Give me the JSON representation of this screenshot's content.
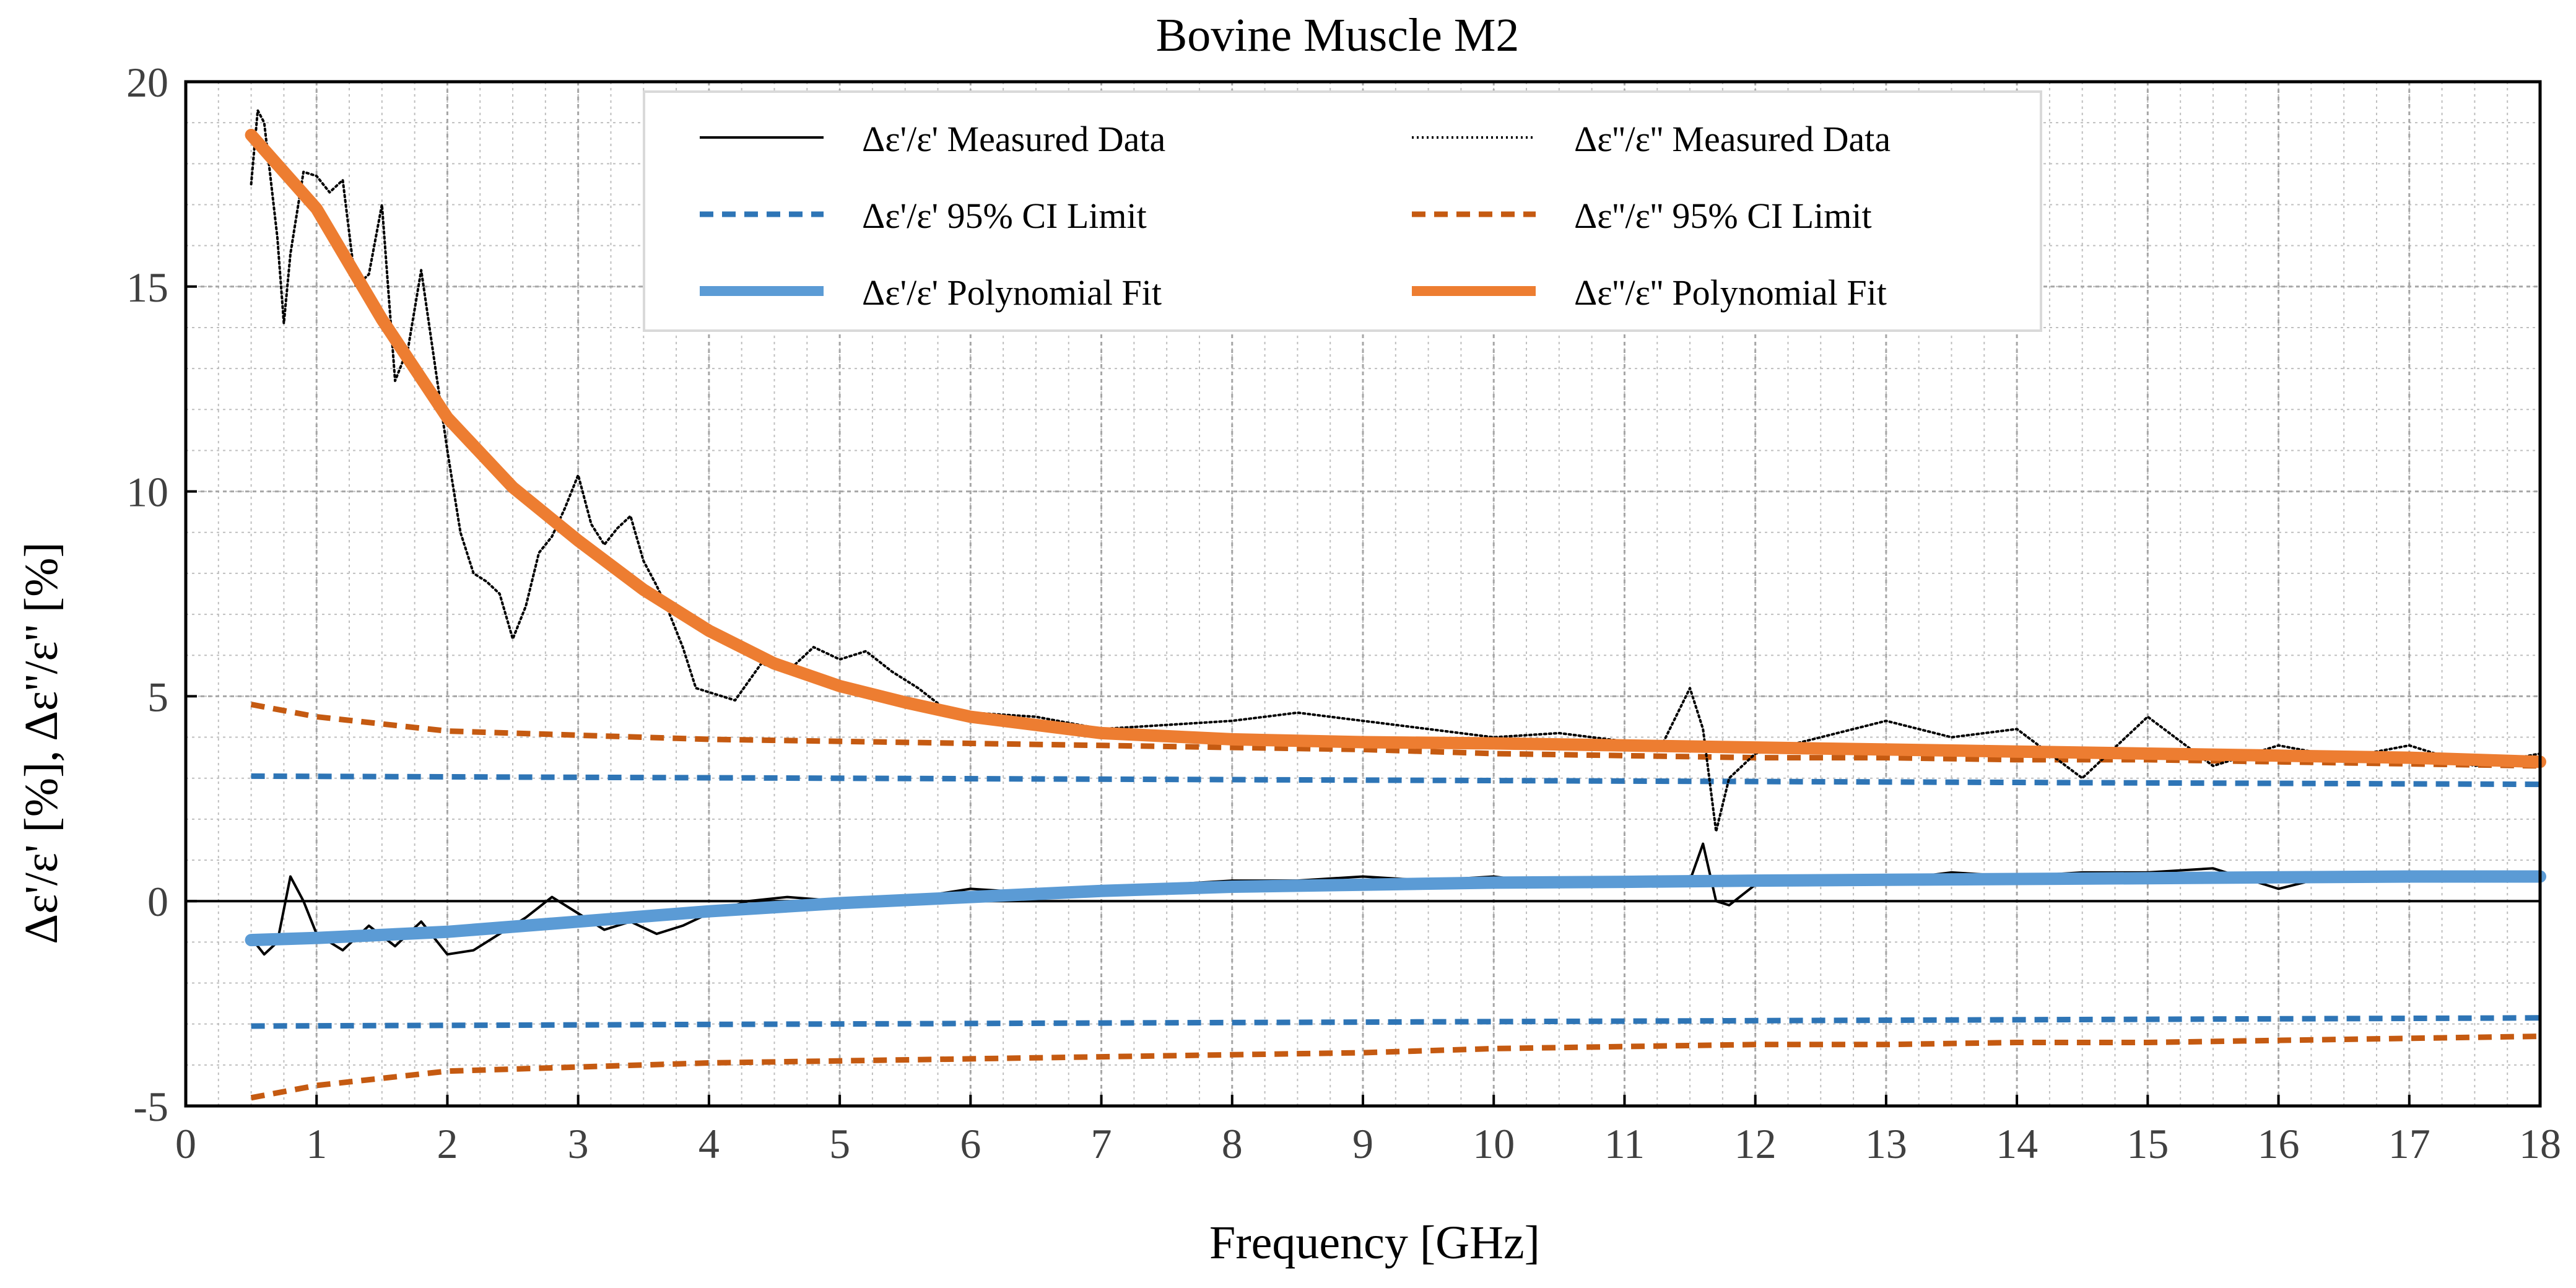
{
  "chart_data": {
    "type": "line",
    "title": "Bovine Muscle M2",
    "xlabel": "Frequency [GHz]",
    "ylabel": "Δε'/ε' [%],  Δε''/ε'' [%]",
    "xlim": [
      0,
      18
    ],
    "ylim": [
      -5,
      20
    ],
    "x_ticks": [
      0,
      1,
      2,
      3,
      4,
      5,
      6,
      7,
      8,
      9,
      10,
      11,
      12,
      13,
      14,
      15,
      16,
      17,
      18
    ],
    "y_ticks": [
      -5,
      0,
      5,
      10,
      15,
      20
    ],
    "x_tick_labels": [
      "0",
      "1",
      "2",
      "3",
      "4",
      "5",
      "6",
      "7",
      "8",
      "9",
      "10",
      "11",
      "12",
      "13",
      "14",
      "15",
      "16",
      "17",
      "18"
    ],
    "y_tick_labels": [
      "-5",
      "0",
      "5",
      "10",
      "15",
      "20"
    ],
    "grid": true,
    "grid_minor": true,
    "legend_position": "top-center",
    "zero_line": true,
    "series": [
      {
        "name": "Δε'/ε' Measured Data",
        "style": "solid-thin",
        "color": "#000000",
        "x": [
          0.5,
          0.6,
          0.7,
          0.8,
          0.9,
          1.0,
          1.2,
          1.4,
          1.6,
          1.8,
          2.0,
          2.2,
          2.4,
          2.6,
          2.8,
          3.0,
          3.2,
          3.4,
          3.6,
          3.8,
          4.0,
          4.3,
          4.6,
          5.0,
          5.5,
          6.0,
          6.5,
          7.0,
          7.5,
          8.0,
          8.5,
          9.0,
          9.5,
          10.0,
          10.5,
          11.0,
          11.5,
          11.6,
          11.7,
          11.8,
          12.0,
          12.5,
          13.0,
          13.5,
          14.0,
          14.5,
          15.0,
          15.5,
          16.0,
          16.5,
          17.0,
          17.5,
          18.0
        ],
        "y": [
          -0.9,
          -1.3,
          -1.0,
          0.6,
          0.0,
          -0.8,
          -1.2,
          -0.6,
          -1.1,
          -0.5,
          -1.3,
          -1.2,
          -0.8,
          -0.4,
          0.1,
          -0.3,
          -0.7,
          -0.5,
          -0.8,
          -0.6,
          -0.3,
          0.0,
          0.1,
          0.0,
          0.05,
          0.3,
          0.2,
          0.3,
          0.4,
          0.5,
          0.5,
          0.6,
          0.5,
          0.6,
          0.4,
          0.5,
          0.5,
          1.4,
          0.0,
          -0.1,
          0.4,
          0.6,
          0.5,
          0.7,
          0.6,
          0.7,
          0.7,
          0.8,
          0.3,
          0.7,
          0.6,
          0.7,
          0.7
        ]
      },
      {
        "name": "Δε''/ε'' Measured Data",
        "style": "dotted",
        "color": "#000000",
        "x": [
          0.5,
          0.55,
          0.6,
          0.7,
          0.75,
          0.8,
          0.9,
          1.0,
          1.1,
          1.2,
          1.3,
          1.4,
          1.5,
          1.6,
          1.7,
          1.8,
          1.9,
          2.0,
          2.1,
          2.2,
          2.3,
          2.4,
          2.5,
          2.6,
          2.7,
          2.8,
          2.9,
          3.0,
          3.1,
          3.2,
          3.3,
          3.4,
          3.5,
          3.6,
          3.7,
          3.8,
          3.9,
          4.0,
          4.2,
          4.4,
          4.6,
          4.8,
          5.0,
          5.2,
          5.4,
          5.6,
          5.8,
          6.0,
          6.5,
          7.0,
          7.5,
          8.0,
          8.5,
          9.0,
          9.5,
          10.0,
          10.5,
          11.0,
          11.3,
          11.5,
          11.6,
          11.7,
          11.8,
          12.0,
          12.5,
          13.0,
          13.5,
          14.0,
          14.5,
          15.0,
          15.5,
          16.0,
          16.5,
          17.0,
          17.5,
          18.0
        ],
        "y": [
          17.5,
          19.3,
          19.0,
          16.2,
          14.1,
          15.8,
          17.8,
          17.7,
          17.3,
          17.6,
          15.0,
          15.3,
          17.0,
          12.7,
          13.5,
          15.4,
          13.2,
          11.0,
          9.0,
          8.0,
          7.8,
          7.5,
          6.4,
          7.2,
          8.5,
          8.9,
          9.6,
          10.4,
          9.2,
          8.7,
          9.1,
          9.4,
          8.3,
          7.7,
          7.0,
          6.2,
          5.2,
          5.1,
          4.9,
          5.8,
          5.6,
          6.2,
          5.9,
          6.1,
          5.6,
          5.2,
          4.7,
          4.6,
          4.5,
          4.2,
          4.3,
          4.4,
          4.6,
          4.4,
          4.2,
          4.0,
          4.1,
          3.9,
          3.9,
          5.2,
          4.2,
          1.7,
          3.0,
          3.6,
          4.0,
          4.4,
          4.0,
          4.2,
          3.0,
          4.5,
          3.3,
          3.8,
          3.5,
          3.8,
          3.3,
          3.6
        ]
      },
      {
        "name": "Δε'/ε' 95% CI Limit",
        "style": "dashed",
        "color": "#2e75b6",
        "x": [
          0.5,
          18
        ],
        "y_upper": [
          3.05,
          2.85
        ],
        "y_lower": [
          -3.05,
          -2.85
        ]
      },
      {
        "name": "Δε''/ε'' 95% CI Limit",
        "style": "dashed",
        "color": "#c55a11",
        "x": [
          0.5,
          1,
          2,
          3,
          4,
          5,
          6,
          7,
          8,
          9,
          10,
          11,
          12,
          13,
          14,
          15,
          16,
          17,
          18
        ],
        "y_upper": [
          4.8,
          4.5,
          4.15,
          4.05,
          3.95,
          3.9,
          3.85,
          3.8,
          3.75,
          3.7,
          3.6,
          3.55,
          3.5,
          3.5,
          3.45,
          3.45,
          3.4,
          3.35,
          3.3
        ],
        "y_lower": [
          -4.8,
          -4.5,
          -4.15,
          -4.05,
          -3.95,
          -3.9,
          -3.85,
          -3.8,
          -3.75,
          -3.7,
          -3.6,
          -3.55,
          -3.5,
          -3.5,
          -3.45,
          -3.45,
          -3.4,
          -3.35,
          -3.3
        ]
      },
      {
        "name": "Δε'/ε' Polynomial Fit",
        "style": "solid-thick",
        "color": "#5b9bd5",
        "x": [
          0.5,
          1,
          2,
          3,
          4,
          5,
          6,
          7,
          8,
          9,
          10,
          11,
          12,
          13,
          14,
          15,
          16,
          17,
          18
        ],
        "y": [
          -0.95,
          -0.9,
          -0.75,
          -0.5,
          -0.25,
          -0.05,
          0.1,
          0.25,
          0.35,
          0.4,
          0.45,
          0.47,
          0.5,
          0.52,
          0.54,
          0.56,
          0.58,
          0.6,
          0.6
        ]
      },
      {
        "name": "Δε''/ε'' Polynomial Fit",
        "style": "solid-thick",
        "color": "#ed7d31",
        "x": [
          0.5,
          1,
          1.5,
          2,
          2.5,
          3,
          3.5,
          4,
          4.5,
          5,
          5.5,
          6,
          7,
          8,
          9,
          10,
          11,
          12,
          13,
          14,
          15,
          16,
          17,
          18
        ],
        "y": [
          18.7,
          16.9,
          14.2,
          11.8,
          10.1,
          8.8,
          7.6,
          6.6,
          5.8,
          5.25,
          4.85,
          4.5,
          4.1,
          3.95,
          3.88,
          3.85,
          3.8,
          3.75,
          3.7,
          3.65,
          3.6,
          3.55,
          3.5,
          3.4
        ]
      }
    ]
  }
}
